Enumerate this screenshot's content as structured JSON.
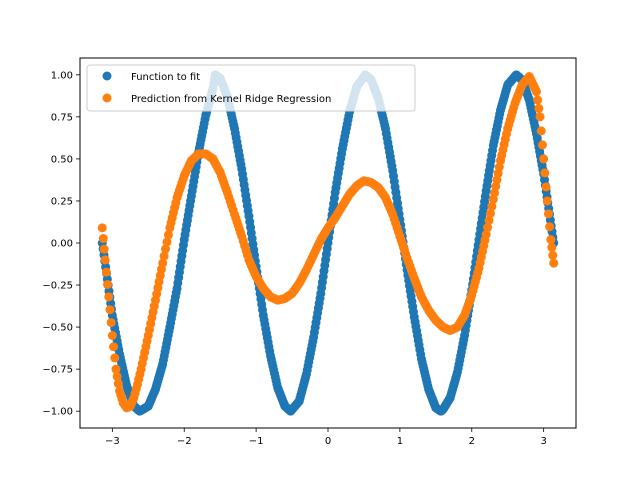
{
  "chart_data": {
    "type": "scatter",
    "title": "",
    "xlabel": "",
    "ylabel": "",
    "xlim": [
      -3.45,
      3.45
    ],
    "ylim": [
      -1.1,
      1.1
    ],
    "x_ticks": [
      -3,
      -2,
      -1,
      0,
      1,
      2,
      3
    ],
    "y_ticks": [
      -1.0,
      -0.75,
      -0.5,
      -0.25,
      0.0,
      0.25,
      0.5,
      0.75,
      1.0
    ],
    "x_tick_labels": [
      "−3",
      "−2",
      "−1",
      "0",
      "1",
      "2",
      "3"
    ],
    "y_tick_labels": [
      "−1.00",
      "−0.75",
      "−0.50",
      "−0.25",
      "0.00",
      "0.25",
      "0.50",
      "0.75",
      "1.00"
    ],
    "grid": false,
    "legend_position": "top-left",
    "series": [
      {
        "name": "Function to fit",
        "color": "#1f77b4",
        "marker": "circle",
        "x": [
          -3.14,
          -3.0,
          -2.9,
          -2.8,
          -2.7,
          -2.62,
          -2.5,
          -2.4,
          -2.3,
          -2.2,
          -2.1,
          -2.0,
          -1.9,
          -1.8,
          -1.7,
          -1.6,
          -1.57,
          -1.5,
          -1.4,
          -1.3,
          -1.2,
          -1.1,
          -1.0,
          -0.9,
          -0.8,
          -0.7,
          -0.6,
          -0.52,
          -0.4,
          -0.3,
          -0.2,
          -0.1,
          0.0,
          0.1,
          0.2,
          0.3,
          0.4,
          0.52,
          0.6,
          0.7,
          0.8,
          0.9,
          1.0,
          1.1,
          1.2,
          1.3,
          1.4,
          1.5,
          1.57,
          1.6,
          1.7,
          1.8,
          1.9,
          2.0,
          2.1,
          2.2,
          2.3,
          2.4,
          2.5,
          2.62,
          2.7,
          2.8,
          2.9,
          3.0,
          3.14
        ],
        "y": [
          0.0,
          -0.43,
          -0.66,
          -0.85,
          -0.97,
          -1.0,
          -0.97,
          -0.87,
          -0.72,
          -0.5,
          -0.27,
          0.02,
          0.28,
          0.54,
          0.76,
          0.92,
          1.0,
          0.98,
          0.87,
          0.68,
          0.44,
          0.16,
          -0.14,
          -0.43,
          -0.67,
          -0.86,
          -0.97,
          -1.0,
          -0.94,
          -0.78,
          -0.56,
          -0.3,
          0.0,
          0.3,
          0.56,
          0.78,
          0.93,
          1.0,
          0.97,
          0.86,
          0.68,
          0.43,
          0.14,
          -0.16,
          -0.44,
          -0.69,
          -0.87,
          -0.98,
          -1.0,
          -0.99,
          -0.92,
          -0.77,
          -0.55,
          -0.28,
          0.02,
          0.31,
          0.58,
          0.79,
          0.94,
          1.0,
          0.97,
          0.85,
          0.65,
          0.41,
          0.0
        ]
      },
      {
        "name": "Prediction from Kernel Ridge Regression",
        "color": "#ff7f0e",
        "marker": "circle",
        "x": [
          -3.14,
          -3.1,
          -3.05,
          -3.0,
          -2.95,
          -2.9,
          -2.85,
          -2.8,
          -2.75,
          -2.7,
          -2.65,
          -2.6,
          -2.5,
          -2.4,
          -2.3,
          -2.2,
          -2.1,
          -2.0,
          -1.9,
          -1.8,
          -1.7,
          -1.6,
          -1.5,
          -1.4,
          -1.3,
          -1.2,
          -1.1,
          -1.0,
          -0.9,
          -0.8,
          -0.7,
          -0.6,
          -0.5,
          -0.4,
          -0.3,
          -0.2,
          -0.1,
          0.0,
          0.1,
          0.2,
          0.3,
          0.4,
          0.5,
          0.6,
          0.7,
          0.8,
          0.9,
          1.0,
          1.1,
          1.2,
          1.3,
          1.4,
          1.5,
          1.6,
          1.7,
          1.8,
          1.9,
          2.0,
          2.1,
          2.2,
          2.3,
          2.4,
          2.5,
          2.6,
          2.7,
          2.8,
          2.9,
          2.95,
          3.0,
          3.05,
          3.1,
          3.14
        ],
        "y": [
          0.09,
          -0.1,
          -0.32,
          -0.55,
          -0.75,
          -0.88,
          -0.95,
          -0.98,
          -0.97,
          -0.92,
          -0.84,
          -0.75,
          -0.55,
          -0.34,
          -0.12,
          0.09,
          0.27,
          0.4,
          0.49,
          0.53,
          0.53,
          0.5,
          0.42,
          0.3,
          0.17,
          0.04,
          -0.1,
          -0.2,
          -0.27,
          -0.32,
          -0.34,
          -0.33,
          -0.3,
          -0.24,
          -0.16,
          -0.07,
          0.02,
          0.09,
          0.15,
          0.22,
          0.29,
          0.34,
          0.37,
          0.36,
          0.33,
          0.27,
          0.17,
          0.04,
          -0.09,
          -0.21,
          -0.32,
          -0.4,
          -0.46,
          -0.5,
          -0.52,
          -0.5,
          -0.43,
          -0.31,
          -0.15,
          0.05,
          0.26,
          0.49,
          0.68,
          0.83,
          0.94,
          0.99,
          0.9,
          0.75,
          0.5,
          0.25,
          0.02,
          -0.12
        ]
      }
    ]
  }
}
